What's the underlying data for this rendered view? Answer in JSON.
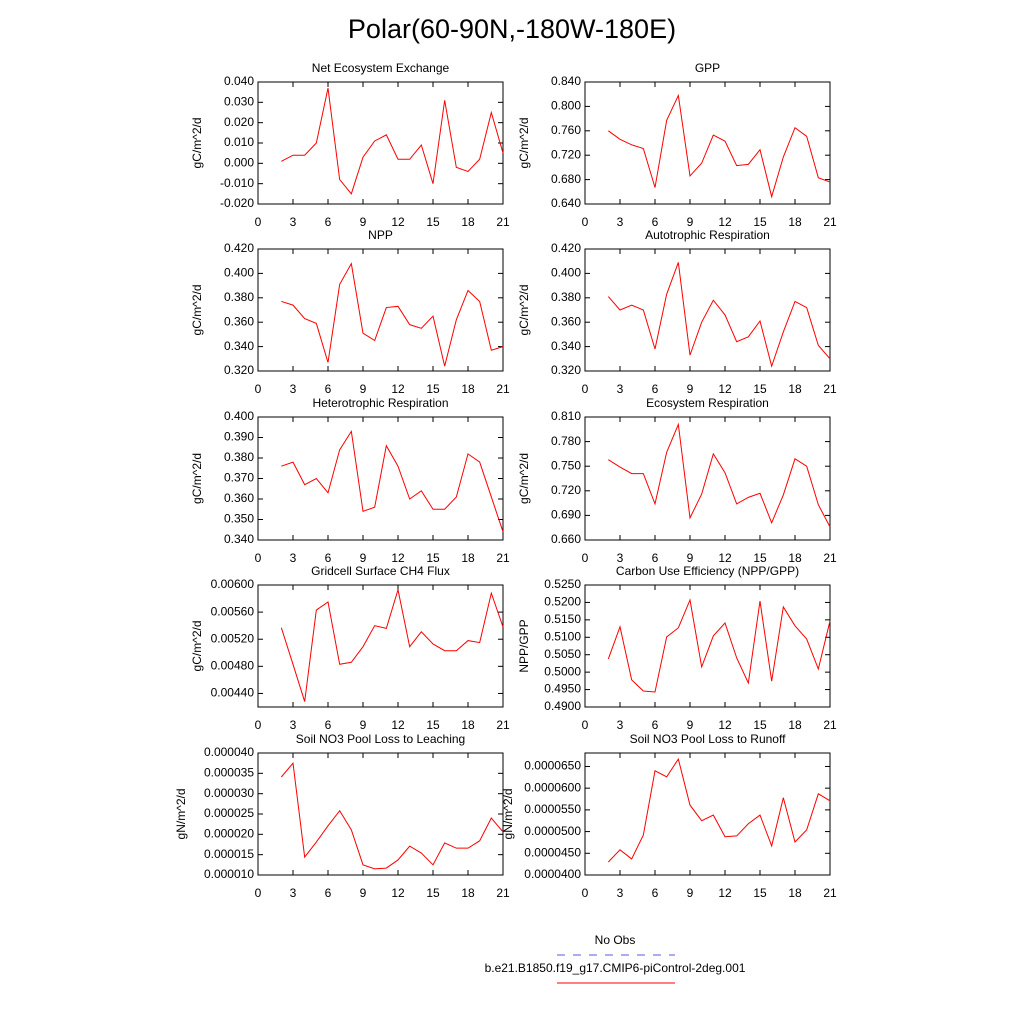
{
  "title": "Polar(60-90N,-180W-180E)",
  "chart_data": [
    {
      "type": "line",
      "title": "Net Ecosystem Exchange",
      "ylabel": "gC/m^2/d",
      "color": "#ff0000",
      "x": [
        2,
        3,
        4,
        5,
        6,
        7,
        8,
        9,
        10,
        11,
        12,
        13,
        14,
        15,
        16,
        17,
        18,
        19,
        20,
        21
      ],
      "values": [
        0.001,
        0.004,
        0.004,
        0.01,
        0.037,
        -0.008,
        -0.015,
        0.003,
        0.011,
        0.014,
        0.002,
        0.002,
        0.009,
        -0.01,
        0.031,
        -0.002,
        -0.004,
        0.002,
        0.025,
        0.005
      ],
      "xlim": [
        0,
        21
      ],
      "xticks": [
        0,
        3,
        6,
        9,
        12,
        15,
        18,
        21
      ],
      "ylim": [
        -0.02,
        0.04
      ],
      "yticks": [
        {
          "value": -0.02,
          "label": "-0.020"
        },
        {
          "value": -0.01,
          "label": "-0.010"
        },
        {
          "value": 0,
          "label": "0.000"
        },
        {
          "value": 0.01,
          "label": "0.010"
        },
        {
          "value": 0.02,
          "label": "0.020"
        },
        {
          "value": 0.03,
          "label": "0.030"
        },
        {
          "value": 0.04,
          "label": "0.040"
        }
      ]
    },
    {
      "type": "line",
      "title": "GPP",
      "ylabel": "gC/m^2/d",
      "color": "#ff0000",
      "x": [
        2,
        3,
        4,
        5,
        6,
        7,
        8,
        9,
        10,
        11,
        12,
        13,
        14,
        15,
        16,
        17,
        18,
        19,
        20,
        21
      ],
      "values": [
        0.76,
        0.746,
        0.737,
        0.731,
        0.667,
        0.777,
        0.818,
        0.686,
        0.707,
        0.753,
        0.743,
        0.703,
        0.705,
        0.729,
        0.652,
        0.717,
        0.765,
        0.751,
        0.683,
        0.676
      ],
      "xlim": [
        0,
        21
      ],
      "xticks": [
        0,
        3,
        6,
        9,
        12,
        15,
        18,
        21
      ],
      "ylim": [
        0.64,
        0.84
      ],
      "yticks": [
        {
          "value": 0.64,
          "label": "0.640"
        },
        {
          "value": 0.68,
          "label": "0.680"
        },
        {
          "value": 0.72,
          "label": "0.720"
        },
        {
          "value": 0.76,
          "label": "0.760"
        },
        {
          "value": 0.8,
          "label": "0.800"
        },
        {
          "value": 0.84,
          "label": "0.840"
        }
      ]
    },
    {
      "type": "line",
      "title": "NPP",
      "ylabel": "gC/m^2/d",
      "color": "#ff0000",
      "x": [
        2,
        3,
        4,
        5,
        6,
        7,
        8,
        9,
        10,
        11,
        12,
        13,
        14,
        15,
        16,
        17,
        18,
        19,
        20,
        21
      ],
      "values": [
        0.377,
        0.374,
        0.363,
        0.359,
        0.327,
        0.391,
        0.408,
        0.351,
        0.345,
        0.372,
        0.373,
        0.358,
        0.355,
        0.365,
        0.324,
        0.362,
        0.386,
        0.377,
        0.337,
        0.34
      ],
      "xlim": [
        0,
        21
      ],
      "xticks": [
        0,
        3,
        6,
        9,
        12,
        15,
        18,
        21
      ],
      "ylim": [
        0.32,
        0.42
      ],
      "yticks": [
        {
          "value": 0.32,
          "label": "0.320"
        },
        {
          "value": 0.34,
          "label": "0.340"
        },
        {
          "value": 0.36,
          "label": "0.360"
        },
        {
          "value": 0.38,
          "label": "0.380"
        },
        {
          "value": 0.4,
          "label": "0.400"
        },
        {
          "value": 0.42,
          "label": "0.420"
        }
      ]
    },
    {
      "type": "line",
      "title": "Autotrophic Respiration",
      "ylabel": "gC/m^2/d",
      "color": "#ff0000",
      "x": [
        2,
        3,
        4,
        5,
        6,
        7,
        8,
        9,
        10,
        11,
        12,
        13,
        14,
        15,
        16,
        17,
        18,
        19,
        20,
        21
      ],
      "values": [
        0.381,
        0.37,
        0.374,
        0.37,
        0.338,
        0.383,
        0.409,
        0.333,
        0.36,
        0.378,
        0.366,
        0.344,
        0.348,
        0.361,
        0.324,
        0.352,
        0.377,
        0.372,
        0.341,
        0.33
      ],
      "xlim": [
        0,
        21
      ],
      "xticks": [
        0,
        3,
        6,
        9,
        12,
        15,
        18,
        21
      ],
      "ylim": [
        0.32,
        0.42
      ],
      "yticks": [
        {
          "value": 0.32,
          "label": "0.320"
        },
        {
          "value": 0.34,
          "label": "0.340"
        },
        {
          "value": 0.36,
          "label": "0.360"
        },
        {
          "value": 0.38,
          "label": "0.380"
        },
        {
          "value": 0.4,
          "label": "0.400"
        },
        {
          "value": 0.42,
          "label": "0.420"
        }
      ]
    },
    {
      "type": "line",
      "title": "Heterotrophic Respiration",
      "ylabel": "gC/m^2/d",
      "color": "#ff0000",
      "x": [
        2,
        3,
        4,
        5,
        6,
        7,
        8,
        9,
        10,
        11,
        12,
        13,
        14,
        15,
        16,
        17,
        18,
        19,
        20,
        21
      ],
      "values": [
        0.376,
        0.378,
        0.367,
        0.37,
        0.363,
        0.384,
        0.393,
        0.354,
        0.356,
        0.386,
        0.376,
        0.36,
        0.364,
        0.355,
        0.355,
        0.361,
        0.382,
        0.378,
        0.361,
        0.344
      ],
      "xlim": [
        0,
        21
      ],
      "xticks": [
        0,
        3,
        6,
        9,
        12,
        15,
        18,
        21
      ],
      "ylim": [
        0.34,
        0.4
      ],
      "yticks": [
        {
          "value": 0.34,
          "label": "0.340"
        },
        {
          "value": 0.35,
          "label": "0.350"
        },
        {
          "value": 0.36,
          "label": "0.360"
        },
        {
          "value": 0.37,
          "label": "0.370"
        },
        {
          "value": 0.38,
          "label": "0.380"
        },
        {
          "value": 0.39,
          "label": "0.390"
        },
        {
          "value": 0.4,
          "label": "0.400"
        }
      ]
    },
    {
      "type": "line",
      "title": "Ecosystem Respiration",
      "ylabel": "gC/m^2/d",
      "color": "#ff0000",
      "x": [
        2,
        3,
        4,
        5,
        6,
        7,
        8,
        9,
        10,
        11,
        12,
        13,
        14,
        15,
        16,
        17,
        18,
        19,
        20,
        21
      ],
      "values": [
        0.758,
        0.749,
        0.741,
        0.741,
        0.704,
        0.767,
        0.801,
        0.687,
        0.716,
        0.765,
        0.742,
        0.704,
        0.712,
        0.717,
        0.681,
        0.715,
        0.759,
        0.75,
        0.703,
        0.676
      ],
      "xlim": [
        0,
        21
      ],
      "xticks": [
        0,
        3,
        6,
        9,
        12,
        15,
        18,
        21
      ],
      "ylim": [
        0.66,
        0.81
      ],
      "yticks": [
        {
          "value": 0.66,
          "label": "0.660"
        },
        {
          "value": 0.69,
          "label": "0.690"
        },
        {
          "value": 0.72,
          "label": "0.720"
        },
        {
          "value": 0.75,
          "label": "0.750"
        },
        {
          "value": 0.78,
          "label": "0.780"
        },
        {
          "value": 0.81,
          "label": "0.810"
        }
      ]
    },
    {
      "type": "line",
      "title": "Gridcell Surface CH4 Flux",
      "ylabel": "gC/m^2/d",
      "color": "#ff0000",
      "x": [
        2,
        3,
        4,
        5,
        6,
        7,
        8,
        9,
        10,
        11,
        12,
        13,
        14,
        15,
        16,
        17,
        18,
        19,
        20,
        21
      ],
      "values": [
        0.00537,
        0.00483,
        0.00428,
        0.00563,
        0.00575,
        0.00483,
        0.00486,
        0.00509,
        0.0054,
        0.00536,
        0.00593,
        0.00509,
        0.00531,
        0.00513,
        0.00503,
        0.00503,
        0.00518,
        0.00515,
        0.00588,
        0.00538
      ],
      "xlim": [
        0,
        21
      ],
      "xticks": [
        0,
        3,
        6,
        9,
        12,
        15,
        18,
        21
      ],
      "ylim": [
        0.0042,
        0.006
      ],
      "yticks": [
        {
          "value": 0.0044,
          "label": "0.00440"
        },
        {
          "value": 0.0048,
          "label": "0.00480"
        },
        {
          "value": 0.0052,
          "label": "0.00520"
        },
        {
          "value": 0.0056,
          "label": "0.00560"
        },
        {
          "value": 0.006,
          "label": "0.00600"
        }
      ]
    },
    {
      "type": "line",
      "title": "Carbon Use Efficiency (NPP/GPP)",
      "ylabel": "NPP/GPP",
      "color": "#ff0000",
      "x": [
        2,
        3,
        4,
        5,
        6,
        7,
        8,
        9,
        10,
        11,
        12,
        13,
        14,
        15,
        16,
        17,
        18,
        19,
        20,
        21
      ],
      "values": [
        0.5038,
        0.513,
        0.4978,
        0.4946,
        0.4943,
        0.5101,
        0.5127,
        0.5207,
        0.5015,
        0.5104,
        0.5141,
        0.5041,
        0.4969,
        0.5204,
        0.4974,
        0.5187,
        0.5133,
        0.5095,
        0.5009,
        0.5147
      ],
      "xlim": [
        0,
        21
      ],
      "xticks": [
        0,
        3,
        6,
        9,
        12,
        15,
        18,
        21
      ],
      "ylim": [
        0.49,
        0.525
      ],
      "yticks": [
        {
          "value": 0.49,
          "label": "0.4900"
        },
        {
          "value": 0.495,
          "label": "0.4950"
        },
        {
          "value": 0.5,
          "label": "0.5000"
        },
        {
          "value": 0.505,
          "label": "0.5050"
        },
        {
          "value": 0.51,
          "label": "0.5100"
        },
        {
          "value": 0.515,
          "label": "0.5150"
        },
        {
          "value": 0.52,
          "label": "0.5200"
        },
        {
          "value": 0.525,
          "label": "0.5250"
        }
      ]
    },
    {
      "type": "line",
      "title": "Soil NO3 Pool Loss to Leaching",
      "ylabel": "gN/m^2/d",
      "color": "#ff0000",
      "x": [
        2,
        3,
        4,
        5,
        6,
        7,
        8,
        9,
        10,
        11,
        12,
        13,
        14,
        15,
        16,
        17,
        18,
        19,
        20,
        21
      ],
      "values": [
        3.41e-05,
        3.75e-05,
        1.44e-05,
        1.81e-05,
        2.21e-05,
        2.58e-05,
        2.11e-05,
        1.25e-05,
        1.15e-05,
        1.17e-05,
        1.37e-05,
        1.71e-05,
        1.54e-05,
        1.25e-05,
        1.79e-05,
        1.66e-05,
        1.66e-05,
        1.84e-05,
        2.4e-05,
        2.06e-05
      ],
      "xlim": [
        0,
        21
      ],
      "xticks": [
        0,
        3,
        6,
        9,
        12,
        15,
        18,
        21
      ],
      "ylim": [
        1e-05,
        4e-05
      ],
      "yticks": [
        {
          "value": 1e-05,
          "label": "0.000010"
        },
        {
          "value": 1.5e-05,
          "label": "0.000015"
        },
        {
          "value": 2e-05,
          "label": "0.000020"
        },
        {
          "value": 2.5e-05,
          "label": "0.000025"
        },
        {
          "value": 3e-05,
          "label": "0.000030"
        },
        {
          "value": 3.5e-05,
          "label": "0.000035"
        },
        {
          "value": 4e-05,
          "label": "0.000040"
        }
      ]
    },
    {
      "type": "line",
      "title": "Soil NO3 Pool Loss to Runoff",
      "ylabel": "gN/m^2/d",
      "color": "#ff0000",
      "x": [
        2,
        3,
        4,
        5,
        6,
        7,
        8,
        9,
        10,
        11,
        12,
        13,
        14,
        15,
        16,
        17,
        18,
        19,
        20,
        21
      ],
      "values": [
        4.3e-05,
        4.58e-05,
        4.37e-05,
        4.92e-05,
        6.4e-05,
        6.26e-05,
        6.67e-05,
        5.61e-05,
        5.25e-05,
        5.38e-05,
        4.88e-05,
        4.9e-05,
        5.18e-05,
        5.38e-05,
        4.67e-05,
        5.78e-05,
        4.76e-05,
        5.04e-05,
        5.87e-05,
        5.71e-05
      ],
      "xlim": [
        0,
        21
      ],
      "xticks": [
        0,
        3,
        6,
        9,
        12,
        15,
        18,
        21
      ],
      "ylim": [
        4e-05,
        6.81e-05
      ],
      "yticks": [
        {
          "value": 4e-05,
          "label": "0.0000400"
        },
        {
          "value": 4.5e-05,
          "label": "0.0000450"
        },
        {
          "value": 5e-05,
          "label": "0.0000500"
        },
        {
          "value": 5.5e-05,
          "label": "0.0000550"
        },
        {
          "value": 6e-05,
          "label": "0.0000600"
        },
        {
          "value": 6.5e-05,
          "label": "0.0000650"
        }
      ]
    }
  ],
  "legend": {
    "entries": [
      {
        "name": "No Obs",
        "color": "#5a5ad0",
        "dash": true
      },
      {
        "name": "b.e21.B1850.f19_g17.CMIP6-piControl-2deg.001",
        "color": "#ff0000",
        "dash": false
      }
    ]
  }
}
